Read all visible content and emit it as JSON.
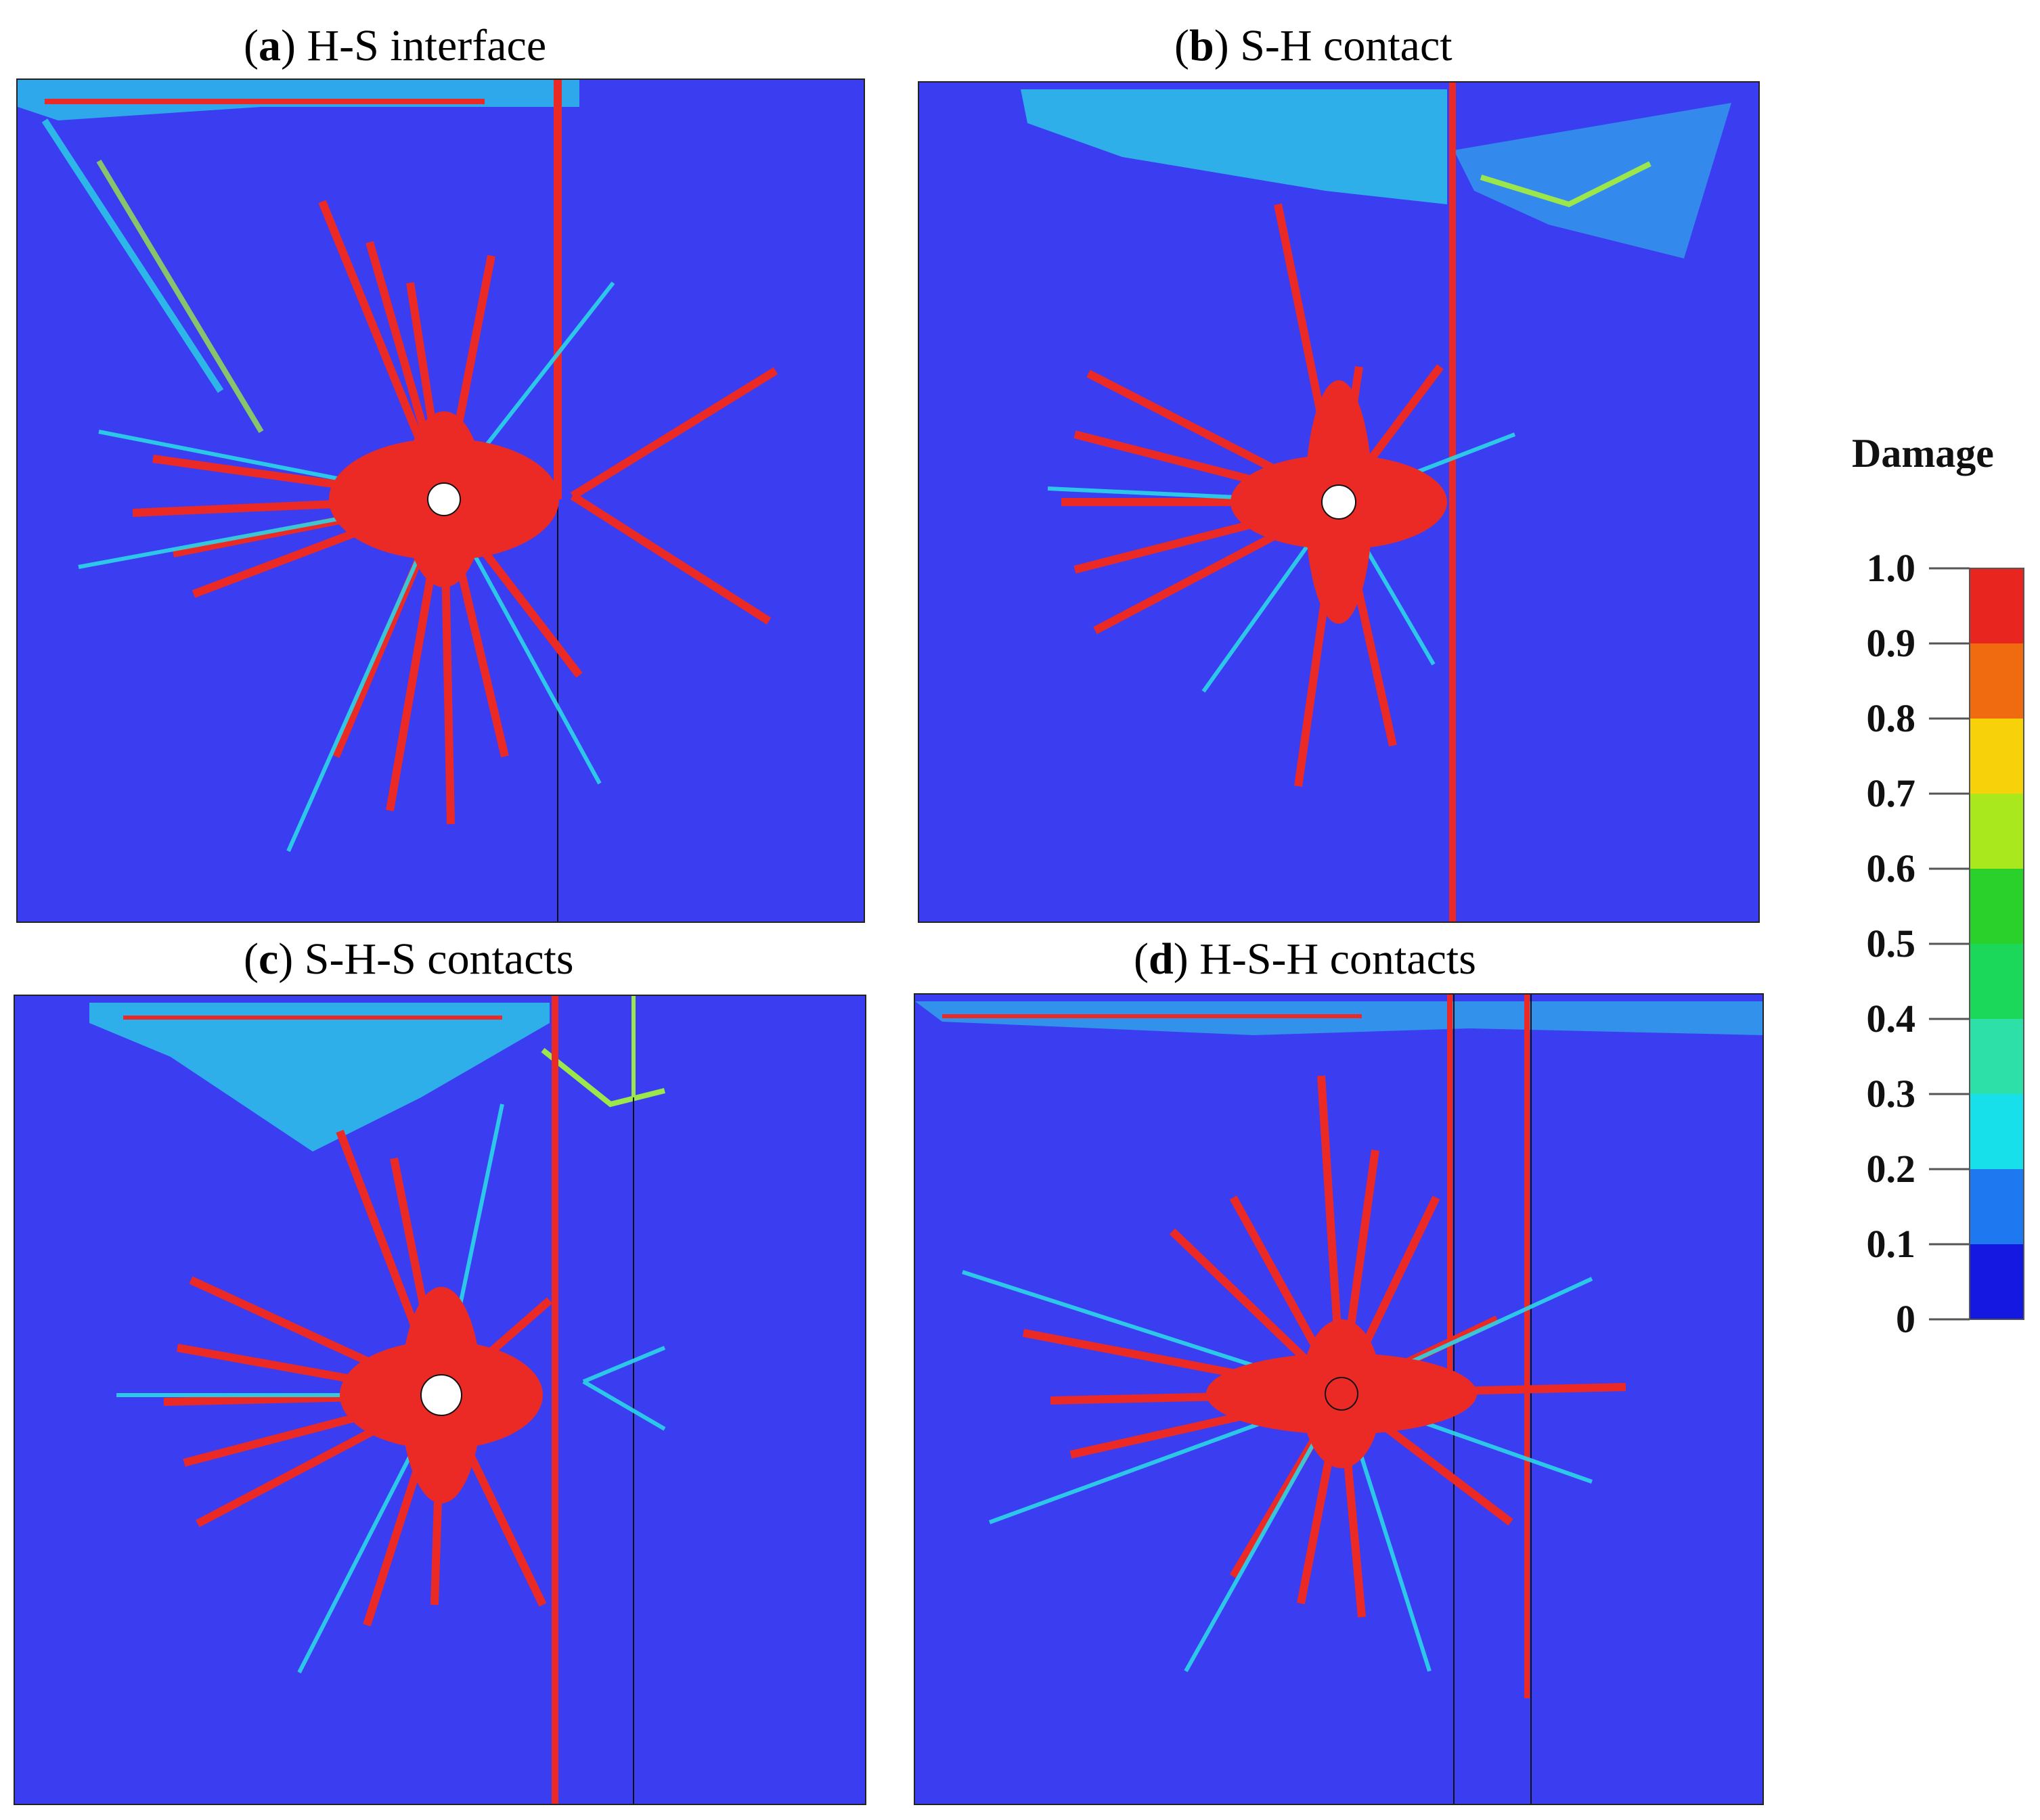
{
  "panels": [
    {
      "letter": "a",
      "label": "H-S interface"
    },
    {
      "letter": "b",
      "label": "S-H contact"
    },
    {
      "letter": "c",
      "label": "S-H-S contacts"
    },
    {
      "letter": "d",
      "label": "H-S-H contacts"
    }
  ],
  "legend": {
    "title": "Damage",
    "ticks": [
      "1.0",
      "0.9",
      "0.8",
      "0.7",
      "0.6",
      "0.5",
      "0.4",
      "0.3",
      "0.2",
      "0.1",
      "0"
    ],
    "colors": [
      "#e8261f",
      "#f06a10",
      "#f7d10a",
      "#a8e81c",
      "#2ad12a",
      "#1bd85a",
      "#2de0a8",
      "#17e0ea",
      "#1e78f0",
      "#1418e0"
    ]
  },
  "colors": {
    "background": "#3a3ef0",
    "crack": "#ec2a25",
    "halo_cyan": "#2bd6e8",
    "halo_green": "#9be64a",
    "hole": "#ffffff"
  }
}
